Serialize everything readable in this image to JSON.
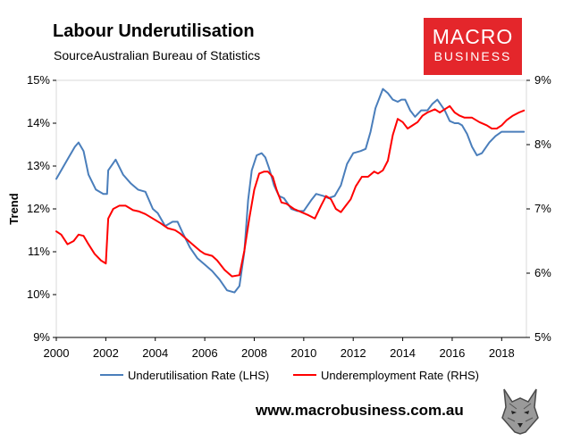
{
  "header": {
    "title": "Labour Underutilisation",
    "source": "SourceAustralian Bureau of Statistics"
  },
  "logo": {
    "line1": "MACRO",
    "line2": "BUSINESS",
    "color": "#e4262b"
  },
  "footer": {
    "url": "www.macrobusiness.com.au"
  },
  "chart_data": {
    "type": "line",
    "title": "Labour Underutilisation",
    "ylabel": "Trend",
    "xlabel": "",
    "xlim": [
      2000,
      2019
    ],
    "ylim_left": [
      9,
      15
    ],
    "ylim_right": [
      5,
      9
    ],
    "x_ticks": [
      "2000",
      "2002",
      "2004",
      "2006",
      "2008",
      "2010",
      "2012",
      "2014",
      "2016",
      "2018"
    ],
    "y_ticks_left": [
      "9%",
      "10%",
      "11%",
      "12%",
      "13%",
      "14%",
      "15%"
    ],
    "y_ticks_right": [
      "5%",
      "6%",
      "7%",
      "8%",
      "9%"
    ],
    "legend_position": "bottom",
    "series": [
      {
        "name": "Underutilisation Rate (LHS)",
        "axis": "left",
        "color": "#4a7ebb",
        "x": [
          2000.0,
          2000.25,
          2000.5,
          2000.75,
          2000.9,
          2001.1,
          2001.3,
          2001.6,
          2001.9,
          2002.05,
          2002.1,
          2002.4,
          2002.7,
          2003.0,
          2003.3,
          2003.6,
          2003.9,
          2004.1,
          2004.4,
          2004.7,
          2004.9,
          2005.1,
          2005.4,
          2005.7,
          2006.0,
          2006.3,
          2006.6,
          2006.9,
          2007.2,
          2007.4,
          2007.6,
          2007.75,
          2007.9,
          2008.1,
          2008.3,
          2008.45,
          2008.6,
          2008.8,
          2009.0,
          2009.2,
          2009.5,
          2009.75,
          2010.0,
          2010.3,
          2010.5,
          2010.8,
          2011.0,
          2011.25,
          2011.5,
          2011.75,
          2012.0,
          2012.3,
          2012.5,
          2012.7,
          2012.9,
          2013.2,
          2013.4,
          2013.6,
          2013.8,
          2013.95,
          2014.1,
          2014.3,
          2014.5,
          2014.75,
          2015.0,
          2015.2,
          2015.4,
          2015.7,
          2015.9,
          2016.1,
          2016.25,
          2016.4,
          2016.6,
          2016.8,
          2017.0,
          2017.2,
          2017.5,
          2017.75,
          2018.0,
          2018.2,
          2018.45,
          2018.7,
          2018.9
        ],
        "values": [
          12.7,
          12.95,
          13.2,
          13.45,
          13.55,
          13.35,
          12.8,
          12.45,
          12.35,
          12.35,
          12.9,
          13.15,
          12.8,
          12.6,
          12.45,
          12.4,
          12.0,
          11.9,
          11.6,
          11.7,
          11.7,
          11.45,
          11.1,
          10.85,
          10.7,
          10.55,
          10.35,
          10.1,
          10.05,
          10.2,
          11.0,
          12.2,
          12.9,
          13.25,
          13.3,
          13.2,
          12.95,
          12.55,
          12.3,
          12.25,
          12.0,
          11.95,
          11.95,
          12.2,
          12.35,
          12.3,
          12.25,
          12.3,
          12.55,
          13.05,
          13.3,
          13.35,
          13.4,
          13.8,
          14.35,
          14.8,
          14.7,
          14.55,
          14.5,
          14.55,
          14.55,
          14.3,
          14.15,
          14.3,
          14.3,
          14.45,
          14.55,
          14.3,
          14.05,
          14.0,
          14.0,
          13.95,
          13.75,
          13.45,
          13.25,
          13.3,
          13.55,
          13.7,
          13.8,
          13.8,
          13.8,
          13.8,
          13.8
        ]
      },
      {
        "name": "Underemployment Rate (RHS)",
        "axis": "right",
        "color": "#ff0000",
        "x": [
          2000.0,
          2000.2,
          2000.45,
          2000.7,
          2000.9,
          2001.1,
          2001.3,
          2001.55,
          2001.8,
          2002.0,
          2002.1,
          2002.3,
          2002.55,
          2002.8,
          2003.1,
          2003.35,
          2003.6,
          2003.9,
          2004.2,
          2004.5,
          2004.8,
          2005.0,
          2005.2,
          2005.5,
          2005.8,
          2006.0,
          2006.3,
          2006.5,
          2006.8,
          2007.1,
          2007.4,
          2007.6,
          2007.8,
          2008.0,
          2008.2,
          2008.4,
          2008.55,
          2008.75,
          2008.9,
          2009.1,
          2009.3,
          2009.6,
          2009.9,
          2010.2,
          2010.45,
          2010.7,
          2010.9,
          2011.1,
          2011.3,
          2011.5,
          2011.7,
          2011.9,
          2012.1,
          2012.35,
          2012.6,
          2012.85,
          2013.0,
          2013.2,
          2013.4,
          2013.6,
          2013.8,
          2014.0,
          2014.2,
          2014.4,
          2014.6,
          2014.8,
          2015.0,
          2015.3,
          2015.5,
          2015.7,
          2015.9,
          2016.1,
          2016.3,
          2016.5,
          2016.8,
          2017.1,
          2017.4,
          2017.6,
          2017.8,
          2018.0,
          2018.2,
          2018.45,
          2018.7,
          2018.9
        ],
        "values": [
          6.65,
          6.6,
          6.45,
          6.5,
          6.6,
          6.58,
          6.45,
          6.3,
          6.2,
          6.15,
          6.85,
          7.0,
          7.05,
          7.05,
          6.98,
          6.96,
          6.92,
          6.85,
          6.78,
          6.7,
          6.67,
          6.62,
          6.55,
          6.45,
          6.35,
          6.3,
          6.27,
          6.2,
          6.05,
          5.95,
          5.97,
          6.35,
          6.85,
          7.3,
          7.55,
          7.58,
          7.58,
          7.5,
          7.3,
          7.1,
          7.08,
          7.0,
          6.95,
          6.9,
          6.85,
          7.05,
          7.2,
          7.15,
          7.0,
          6.95,
          7.05,
          7.15,
          7.35,
          7.5,
          7.5,
          7.58,
          7.55,
          7.6,
          7.75,
          8.15,
          8.4,
          8.35,
          8.25,
          8.3,
          8.35,
          8.45,
          8.5,
          8.55,
          8.5,
          8.55,
          8.6,
          8.5,
          8.45,
          8.42,
          8.42,
          8.35,
          8.3,
          8.25,
          8.25,
          8.3,
          8.38,
          8.45,
          8.5,
          8.53
        ]
      }
    ]
  }
}
